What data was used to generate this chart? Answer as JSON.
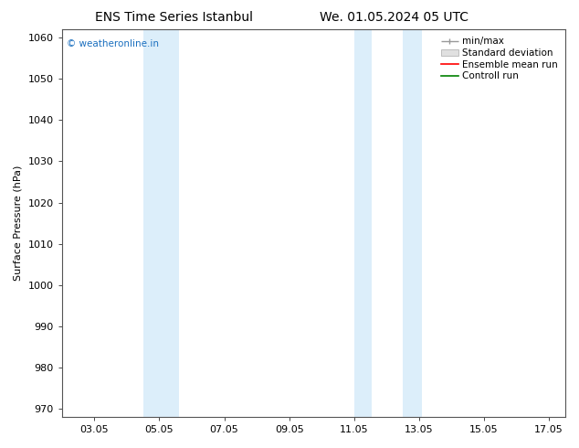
{
  "title_left": "ENS Time Series Istanbul",
  "title_right": "We. 01.05.2024 05 UTC",
  "ylabel": "Surface Pressure (hPa)",
  "ylim": [
    968,
    1062
  ],
  "yticks": [
    970,
    980,
    990,
    1000,
    1010,
    1020,
    1030,
    1040,
    1050,
    1060
  ],
  "xlim": [
    2.0,
    17.5
  ],
  "x_tick_positions": [
    3,
    5,
    7,
    9,
    11,
    13,
    15,
    17
  ],
  "x_tick_labels": [
    "03.05",
    "05.05",
    "07.05",
    "09.05",
    "11.05",
    "13.05",
    "15.05",
    "17.05"
  ],
  "shaded_bands": [
    {
      "x_start": 4.5,
      "x_end": 5.6
    },
    {
      "x_start": 11.0,
      "x_end": 11.55
    },
    {
      "x_start": 12.5,
      "x_end": 13.1
    }
  ],
  "shade_color": "#dceefa",
  "watermark": "© weatheronline.in",
  "watermark_color": "#1a6fbf",
  "legend_labels": [
    "min/max",
    "Standard deviation",
    "Ensemble mean run",
    "Controll run"
  ],
  "legend_colors": [
    "#999999",
    "#cccccc",
    "#ff0000",
    "#008000"
  ],
  "background_color": "#ffffff",
  "title_fontsize": 10,
  "label_fontsize": 8,
  "tick_fontsize": 8,
  "legend_fontsize": 7.5
}
